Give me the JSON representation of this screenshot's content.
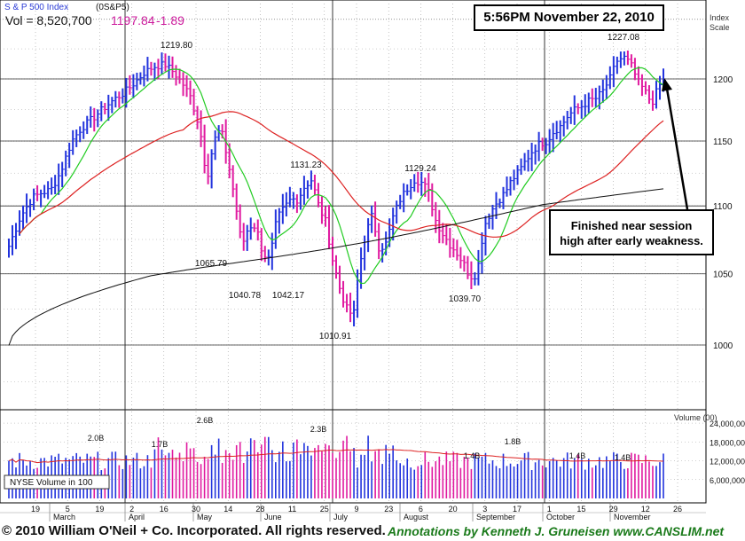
{
  "header": {
    "index_name": "S & P 500 Index",
    "symbol": "(0S&P5)",
    "vol_label": "Vol = 8,520,700",
    "last_price": "1197.84",
    "change": "-1.89",
    "price_color": "#cc1a9c",
    "link_color": "#2b3bd6"
  },
  "timestamp": "5:56PM November 22, 2010",
  "annotation": {
    "line1": "Finished near session",
    "line2": "high after early weakness."
  },
  "footer": {
    "copyright": "© 2010 William O'Neil + Co. Incorporated. All rights reserved.",
    "credit": "Annotations by Kenneth J. Gruneisen www.CANSLIM.net"
  },
  "colors": {
    "up_bar": "#2233dd",
    "down_bar": "#e01aa0",
    "ma_short": "#22cc22",
    "ma_mid": "#dd2222",
    "ma_long": "#111111",
    "vol_ma": "#dd2222",
    "grid": "#555555"
  },
  "chart_data": {
    "type": "ohlc",
    "price_axis": {
      "label_line1": "Index",
      "label_line2": "Scale",
      "ticks": [
        1000,
        1050,
        1100,
        1150,
        1200
      ],
      "scale": "log"
    },
    "volume_axis": {
      "label": "Volume (00)",
      "ticks": [
        "24,000,000",
        "18,000,000",
        "12,000,000",
        "6,000,000"
      ],
      "tick_values": [
        24000000,
        18000000,
        12000000,
        6000000
      ],
      "legend": "NYSE Volume in 100"
    },
    "x_day_labels": [
      "19",
      "5",
      "19",
      "2",
      "16",
      "30",
      "14",
      "28",
      "11",
      "25",
      "9",
      "23",
      "6",
      "20",
      "3",
      "17",
      "1",
      "15",
      "29",
      "12",
      "26"
    ],
    "x_month_labels": [
      "March",
      "April",
      "May",
      "June",
      "July",
      "August",
      "September",
      "October",
      "November"
    ],
    "price_annotations": [
      "1219.80",
      "1065.79",
      "1040.78",
      "1042.17",
      "1131.23",
      "1010.91",
      "1129.24",
      "1039.70",
      "1227.08"
    ],
    "volume_annotations": [
      "2.0B",
      "1.7B",
      "2.6B",
      "2.3B",
      "1.4B",
      "1.8B",
      "1.4B",
      "1.4B"
    ],
    "path": [
      [
        0,
        1070
      ],
      [
        5,
        1092
      ],
      [
        10,
        1106
      ],
      [
        14,
        1110
      ],
      [
        18,
        1112
      ],
      [
        22,
        1125
      ],
      [
        27,
        1150
      ],
      [
        31,
        1160
      ],
      [
        36,
        1168
      ],
      [
        40,
        1175
      ],
      [
        45,
        1183
      ],
      [
        49,
        1188
      ],
      [
        53,
        1195
      ],
      [
        58,
        1205
      ],
      [
        62,
        1210
      ],
      [
        67,
        1212
      ],
      [
        71,
        1205
      ],
      [
        75,
        1195
      ],
      [
        78,
        1185
      ],
      [
        82,
        1160
      ],
      [
        85,
        1120
      ],
      [
        88,
        1150
      ],
      [
        91,
        1160
      ],
      [
        94,
        1135
      ],
      [
        97,
        1105
      ],
      [
        100,
        1070
      ],
      [
        103,
        1085
      ],
      [
        106,
        1085
      ],
      [
        109,
        1065
      ],
      [
        112,
        1060
      ],
      [
        115,
        1090
      ],
      [
        118,
        1098
      ],
      [
        121,
        1105
      ],
      [
        124,
        1105
      ],
      [
        127,
        1115
      ],
      [
        130,
        1120
      ],
      [
        133,
        1100
      ],
      [
        136,
        1088
      ],
      [
        139,
        1060
      ],
      [
        142,
        1040
      ],
      [
        145,
        1025
      ],
      [
        148,
        1020
      ],
      [
        150,
        1050
      ],
      [
        153,
        1078
      ],
      [
        156,
        1093
      ],
      [
        159,
        1068
      ],
      [
        162,
        1072
      ],
      [
        165,
        1092
      ],
      [
        168,
        1105
      ],
      [
        171,
        1113
      ],
      [
        174,
        1120
      ],
      [
        177,
        1118
      ],
      [
        180,
        1112
      ],
      [
        183,
        1090
      ],
      [
        186,
        1080
      ],
      [
        189,
        1072
      ],
      [
        192,
        1066
      ],
      [
        195,
        1058
      ],
      [
        198,
        1048
      ],
      [
        201,
        1050
      ],
      [
        204,
        1085
      ],
      [
        207,
        1096
      ],
      [
        210,
        1104
      ],
      [
        213,
        1110
      ],
      [
        216,
        1120
      ],
      [
        219,
        1126
      ],
      [
        222,
        1135
      ],
      [
        225,
        1143
      ],
      [
        228,
        1148
      ],
      [
        231,
        1150
      ],
      [
        234,
        1158
      ],
      [
        237,
        1162
      ],
      [
        240,
        1170
      ],
      [
        243,
        1175
      ],
      [
        246,
        1178
      ],
      [
        249,
        1182
      ],
      [
        252,
        1184
      ],
      [
        255,
        1190
      ],
      [
        258,
        1200
      ],
      [
        261,
        1215
      ],
      [
        264,
        1218
      ],
      [
        267,
        1212
      ],
      [
        270,
        1198
      ],
      [
        273,
        1190
      ],
      [
        276,
        1180
      ],
      [
        279,
        1194
      ],
      [
        281,
        1198
      ]
    ]
  }
}
